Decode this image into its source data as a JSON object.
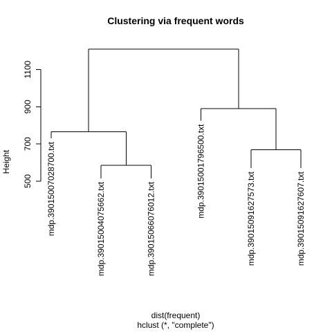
{
  "chart_data": {
    "type": "dendrogram",
    "title": "Clustering via frequent words",
    "ylabel": "Height",
    "xlabel": "dist(frequent)",
    "sublabel": "hclust (*, \"complete\")",
    "ylim": [
      500,
      1250
    ],
    "yticks": [
      500,
      700,
      900,
      1100
    ],
    "leaves": [
      "mdp.39015007028700.txt",
      "mdp.39015004075662.txt",
      "mdp.39015066076012.txt",
      "mdp.39015001796500.txt",
      "mdp.39015091627573.txt",
      "mdp.39015091627607.txt"
    ],
    "merges": [
      {
        "left": -2,
        "right": -3,
        "height": 585
      },
      {
        "left": -5,
        "right": -6,
        "height": 670
      },
      {
        "left": -1,
        "right": 1,
        "height": 765
      },
      {
        "left": -4,
        "right": 2,
        "height": 890
      },
      {
        "left": 3,
        "right": 4,
        "height": 1210
      }
    ],
    "leaf_tip_heights": [
      730,
      515,
      515,
      825,
      570,
      570
    ]
  }
}
